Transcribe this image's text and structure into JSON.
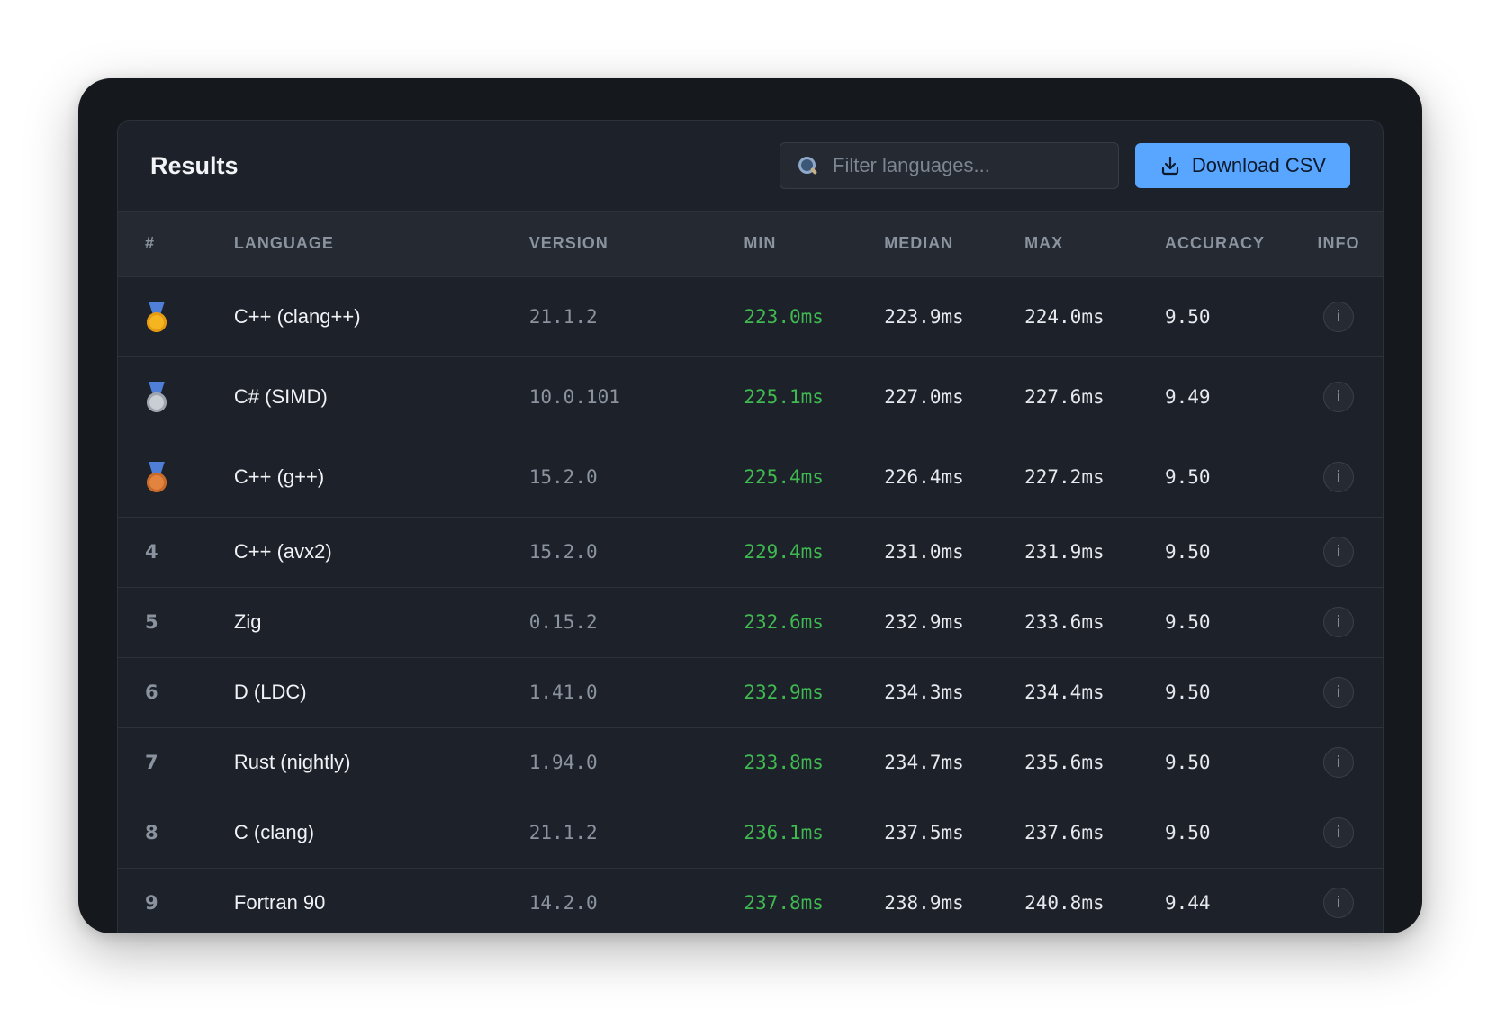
{
  "header": {
    "title": "Results",
    "search_placeholder": "Filter languages...",
    "download_label": "Download CSV"
  },
  "columns": [
    "#",
    "LANGUAGE",
    "VERSION",
    "MIN",
    "MEDIAN",
    "MAX",
    "ACCURACY",
    "INFO"
  ],
  "rows": [
    {
      "rank": "1",
      "medal": "gold-medal-icon",
      "language": "C++ (clang++)",
      "version": "21.1.2",
      "min": "223.0ms",
      "median": "223.9ms",
      "max": "224.0ms",
      "accuracy": "9.50",
      "info": "i"
    },
    {
      "rank": "2",
      "medal": "silver-medal-icon",
      "language": "C# (SIMD)",
      "version": "10.0.101",
      "min": "225.1ms",
      "median": "227.0ms",
      "max": "227.6ms",
      "accuracy": "9.49",
      "info": "i"
    },
    {
      "rank": "3",
      "medal": "bronze-medal-icon",
      "language": "C++ (g++)",
      "version": "15.2.0",
      "min": "225.4ms",
      "median": "226.4ms",
      "max": "227.2ms",
      "accuracy": "9.50",
      "info": "i"
    },
    {
      "rank": "4",
      "medal": "",
      "language": "C++ (avx2)",
      "version": "15.2.0",
      "min": "229.4ms",
      "median": "231.0ms",
      "max": "231.9ms",
      "accuracy": "9.50",
      "info": "i"
    },
    {
      "rank": "5",
      "medal": "",
      "language": "Zig",
      "version": "0.15.2",
      "min": "232.6ms",
      "median": "232.9ms",
      "max": "233.6ms",
      "accuracy": "9.50",
      "info": "i"
    },
    {
      "rank": "6",
      "medal": "",
      "language": "D (LDC)",
      "version": "1.41.0",
      "min": "232.9ms",
      "median": "234.3ms",
      "max": "234.4ms",
      "accuracy": "9.50",
      "info": "i"
    },
    {
      "rank": "7",
      "medal": "",
      "language": "Rust (nightly)",
      "version": "1.94.0",
      "min": "233.8ms",
      "median": "234.7ms",
      "max": "235.6ms",
      "accuracy": "9.50",
      "info": "i"
    },
    {
      "rank": "8",
      "medal": "",
      "language": "C (clang)",
      "version": "21.1.2",
      "min": "236.1ms",
      "median": "237.5ms",
      "max": "237.6ms",
      "accuracy": "9.50",
      "info": "i"
    },
    {
      "rank": "9",
      "medal": "",
      "language": "Fortran 90",
      "version": "14.2.0",
      "min": "237.8ms",
      "median": "238.9ms",
      "max": "240.8ms",
      "accuracy": "9.44",
      "info": "i"
    }
  ]
}
